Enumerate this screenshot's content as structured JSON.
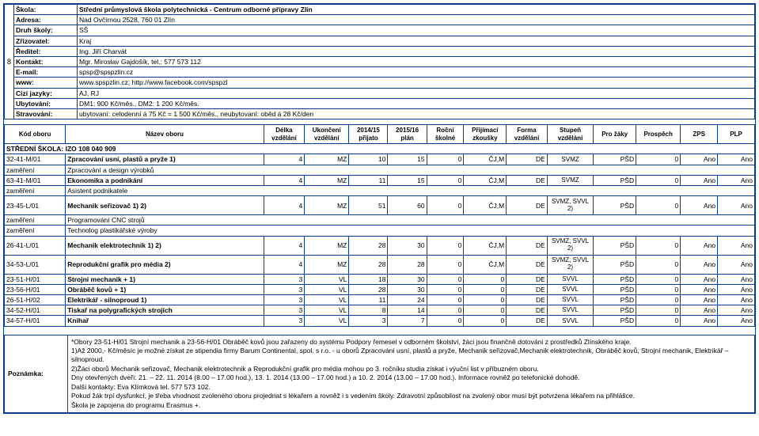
{
  "page_number": "8",
  "info": {
    "skola_label": "Škola:",
    "skola": "Střední průmyslová škola polytechnická - Centrum odborné přípravy Zlín",
    "adresa_label": "Adresa:",
    "adresa": "Nad Ovčírnou 2528, 760 01 Zlín",
    "druh_label": "Druh školy:",
    "druh": "SŠ",
    "zrizovatel_label": "Zřizovatel:",
    "zrizovatel": "Kraj",
    "reditel_label": "Ředitel:",
    "reditel": "Ing. Jiří Charvát",
    "kontakt_label": "Kontakt:",
    "kontakt": "Mgr. Miroslav Gajdošík, tel.: 577 573 112",
    "email_label": "E-mail:",
    "email": "spsp@spspzlin.cz",
    "www_label": "www:",
    "www": "www.spspzlin.cz; http://www.facebook.com/spspzl",
    "jazyky_label": "Cizí jazyky:",
    "jazyky": "AJ, RJ",
    "ubytovani_label": "Ubytování:",
    "ubytovani": "DM1: 900 Kč/měs., DM2: 1 200 Kč/měs.",
    "stravovani_label": "Stravování:",
    "stravovani": "ubytovaní: celodenní á 75 Kč = 1 500 Kč/měs., neubytovaní: oběd á 28 Kč/den"
  },
  "headers": {
    "kod": "Kód oboru",
    "nazev": "Název oboru",
    "delka": "Délka vzdělání",
    "ukonceni": "Ukončení vzdělání",
    "prij1415": "2014/15 přijato",
    "prij1516": "2015/16 plán",
    "skolne": "Roční školné",
    "zkousky": "Přijímací zkoušky",
    "forma": "Forma vzdělání",
    "stupen": "Stupeň vzdělání",
    "prozaky": "Pro žáky",
    "prospech": "Prospěch",
    "zps": "ZPS",
    "plp": "PLP"
  },
  "section": "STŘEDNÍ ŠKOLA: IZO 108 040 909",
  "rows": [
    {
      "kod": "32-41-M/01",
      "nazev": "Zpracování usní, plastů a pryže 1)",
      "delka": "4",
      "uk": "MZ",
      "p": "10",
      "pl": "15",
      "sk": "0",
      "zk": "ČJ,M",
      "fo": "DE",
      "st": "SVMZ",
      "pz": "PŠD",
      "pr": "0",
      "zps": "Ano",
      "plp": "Ano"
    },
    {
      "kod": "zaměření",
      "nazev": "Zpracování a design výrobků"
    },
    {
      "kod": "63-41-M/01",
      "nazev": "Ekonomika a podnikání",
      "delka": "4",
      "uk": "MZ",
      "p": "11",
      "pl": "15",
      "sk": "0",
      "zk": "ČJ,M",
      "fo": "DE",
      "st": "SVMZ",
      "pz": "PŠD",
      "pr": "0",
      "zps": "Ano",
      "plp": "Ano"
    },
    {
      "kod": "zaměření",
      "nazev": "Asistent podnikatele"
    },
    {
      "kod": "23-45-L/01",
      "nazev": "Mechanik seřizovač 1) 2)",
      "delka": "4",
      "uk": "MZ",
      "p": "51",
      "pl": "60",
      "sk": "0",
      "zk": "ČJ,M",
      "fo": "DE",
      "st": "SVMZ, SVVL 2)",
      "pz": "PŠD",
      "pr": "0",
      "zps": "Ano",
      "plp": "Ano",
      "tall": true
    },
    {
      "kod": "zaměření",
      "nazev": "Programování CNC strojů"
    },
    {
      "kod": "zaměření",
      "nazev": "Technolog plastikářské výroby"
    },
    {
      "kod": "26-41-L/01",
      "nazev": "Mechanik elektrotechnik 1) 2)",
      "delka": "4",
      "uk": "MZ",
      "p": "28",
      "pl": "30",
      "sk": "0",
      "zk": "ČJ,M",
      "fo": "DE",
      "st": "SVMZ, SVVL 2)",
      "pz": "PŠD",
      "pr": "0",
      "zps": "Ano",
      "plp": "Ano",
      "tall": true
    },
    {
      "kod": "34-53-L/01",
      "nazev": "Reprodukční grafik pro média 2)",
      "delka": "4",
      "uk": "MZ",
      "p": "28",
      "pl": "28",
      "sk": "0",
      "zk": "ČJ,M",
      "fo": "DE",
      "st": "SVMZ, SVVL 2)",
      "pz": "PŠD",
      "pr": "0",
      "zps": "Ano",
      "plp": "Ano",
      "tall": true
    },
    {
      "kod": "23-51-H/01",
      "nazev": "Strojní mechanik + 1)",
      "delka": "3",
      "uk": "VL",
      "p": "18",
      "pl": "30",
      "sk": "0",
      "zk": "0",
      "fo": "DE",
      "st": "SVVL",
      "pz": "PŠD",
      "pr": "0",
      "zps": "Ano",
      "plp": "Ano"
    },
    {
      "kod": "23-56-H/01",
      "nazev": "Obráběč kovů + 1)",
      "delka": "3",
      "uk": "VL",
      "p": "28",
      "pl": "30",
      "sk": "0",
      "zk": "0",
      "fo": "DE",
      "st": "SVVL",
      "pz": "PŠD",
      "pr": "0",
      "zps": "Ano",
      "plp": "Ano"
    },
    {
      "kod": "26-51-H/02",
      "nazev": "Elektrikář - silnoproud 1)",
      "delka": "3",
      "uk": "VL",
      "p": "11",
      "pl": "24",
      "sk": "0",
      "zk": "0",
      "fo": "DE",
      "st": "SVVL",
      "pz": "PŠD",
      "pr": "0",
      "zps": "Ano",
      "plp": "Ano"
    },
    {
      "kod": "34-52-H/01",
      "nazev": "Tiskař na polygrafických strojích",
      "delka": "3",
      "uk": "VL",
      "p": "8",
      "pl": "14",
      "sk": "0",
      "zk": "0",
      "fo": "DE",
      "st": "SVVL",
      "pz": "PŠD",
      "pr": "0",
      "zps": "Ano",
      "plp": "Ano"
    },
    {
      "kod": "34-57-H/01",
      "nazev": "Knihař",
      "delka": "3",
      "uk": "VL",
      "p": "3",
      "pl": "7",
      "sk": "0",
      "zk": "0",
      "fo": "DE",
      "st": "SVVL",
      "pz": "PŠD",
      "pr": "0",
      "zps": "Ano",
      "plp": "Ano"
    }
  ],
  "note": {
    "label": "Poznámka:",
    "lines": [
      "*Obory 23-51-H/01 Strojní mechanik a 23-56-H/01 Obráběč kovů jsou zařazeny do systému Podpory řemesel v odborném školství, žáci jsou finančně dotováni z prostředků Zlínského kraje.",
      "1)Až 2000,- Kč/měsíc je možné získat ze stipendia firmy Barum Continental, spol. s r.o. - u oborů Zpracování usní, plastů a pryže, Mechanik seřizovač,Mechanik elektrotechnik, Obráběč kovů, Strojní mechanik, Elektrikář – silnoproud.",
      "2)Žáci oborů Mechanik seřizovač, Mechanik elektrotechnik a Reprodukční grafik pro média mohou po 3. ročníku studia získat i výuční list v příbuzném oboru.",
      "Dny otevřených dveří: 21. – 22. 11. 2014 (8.00 – 17.00 hod.), 13. 1. 2014 (13.00 – 17.00 hod.) a 10. 2. 2014 (13.00 – 17.00 hod.). Informace rovněž po telefonické dohodě.",
      "Další kontakty: Eva Klímková tel. 577 573 102.",
      "Pokud žák trpí dysfunkcí, je třeba vhodnost zvoleného oboru projednat s lékařem a rovněž i s vedením školy. Zdravotní způsobilost na zvolený obor musí být potvrzena lékařem na přihlášce.",
      "Škola je zapojena do programu Erasmus +."
    ]
  },
  "colwidths": {
    "kod": 66,
    "nazev": 214,
    "delka": 44,
    "uk": 48,
    "p": 42,
    "pl": 42,
    "sk": 40,
    "zk": 46,
    "fo": 44,
    "st": 50,
    "pz": 46,
    "pr": 48,
    "zps": 40,
    "plp": 40
  }
}
